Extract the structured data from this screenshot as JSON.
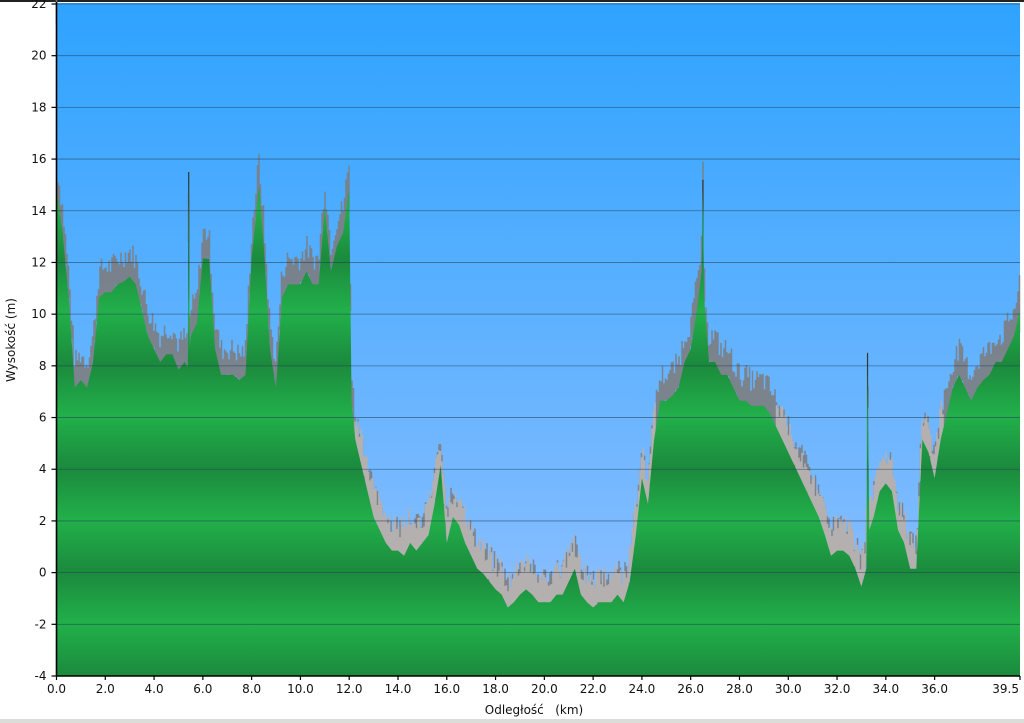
{
  "chart_data": {
    "type": "area",
    "title": "",
    "xlabel": "Odległość   (km)",
    "ylabel": "Wysokość (m)",
    "xlim": [
      0,
      39.5
    ],
    "ylim": [
      -4,
      22
    ],
    "x_ticks": [
      "0.0",
      "2.0",
      "4.0",
      "6.0",
      "8.0",
      "10.0",
      "12.0",
      "14.0",
      "16.0",
      "18.0",
      "20.0",
      "22.0",
      "24.0",
      "26.0",
      "28.0",
      "30.0",
      "32.0",
      "34.0",
      "36.0",
      "39.5"
    ],
    "y_ticks": [
      "-4",
      "-2",
      "0",
      "2",
      "4",
      "6",
      "8",
      "10",
      "12",
      "14",
      "16",
      "18",
      "20",
      "22"
    ],
    "grid": "horizontal",
    "colors": {
      "sky_top": "#2ea3ff",
      "sky_bottom": "#93c1ff",
      "terrain_dark": "#1b8a3d",
      "terrain_light": "#22b04a",
      "noise_high": "#7d7d80",
      "noise_low": "#b4b0b0"
    },
    "series": [
      {
        "points": [
          [
            0.0,
            22
          ],
          [
            0.03,
            15
          ],
          [
            0.25,
            13.5
          ],
          [
            0.5,
            11
          ],
          [
            0.75,
            7.5
          ],
          [
            1.0,
            7.8
          ],
          [
            1.25,
            7.5
          ],
          [
            1.5,
            8.5
          ],
          [
            1.75,
            11
          ],
          [
            2.0,
            11.2
          ],
          [
            2.25,
            11.2
          ],
          [
            2.5,
            11.5
          ],
          [
            2.75,
            11.6
          ],
          [
            3.0,
            11.8
          ],
          [
            3.25,
            11.5
          ],
          [
            3.5,
            10.5
          ],
          [
            3.75,
            9.5
          ],
          [
            4.0,
            9
          ],
          [
            4.25,
            8.5
          ],
          [
            4.5,
            8.8
          ],
          [
            4.75,
            8.8
          ],
          [
            5.0,
            8.2
          ],
          [
            5.25,
            8.5
          ],
          [
            5.38,
            8.3
          ],
          [
            5.42,
            15.5
          ],
          [
            5.46,
            9
          ],
          [
            5.5,
            9.5
          ],
          [
            5.75,
            10
          ],
          [
            6.0,
            12.5
          ],
          [
            6.25,
            12.5
          ],
          [
            6.5,
            9
          ],
          [
            6.75,
            8
          ],
          [
            7.0,
            8
          ],
          [
            7.25,
            8
          ],
          [
            7.5,
            7.8
          ],
          [
            7.75,
            8
          ],
          [
            8.0,
            12.5
          ],
          [
            8.3,
            15.3
          ],
          [
            8.5,
            13
          ],
          [
            8.75,
            9
          ],
          [
            9.0,
            7.5
          ],
          [
            9.25,
            11
          ],
          [
            9.5,
            11.5
          ],
          [
            9.75,
            11.5
          ],
          [
            10.0,
            11.5
          ],
          [
            10.25,
            12
          ],
          [
            10.5,
            11.5
          ],
          [
            10.75,
            11.5
          ],
          [
            11.0,
            14.5
          ],
          [
            11.25,
            12
          ],
          [
            11.5,
            13
          ],
          [
            11.75,
            13.5
          ],
          [
            12.0,
            15.2
          ],
          [
            12.1,
            7
          ],
          [
            12.25,
            5.5
          ],
          [
            12.5,
            4.5
          ],
          [
            12.75,
            3.5
          ],
          [
            13.0,
            2.5
          ],
          [
            13.25,
            2
          ],
          [
            13.5,
            1.5
          ],
          [
            13.75,
            1.2
          ],
          [
            14.0,
            1.2
          ],
          [
            14.25,
            1
          ],
          [
            14.5,
            1.5
          ],
          [
            14.75,
            1.2
          ],
          [
            15.0,
            1.5
          ],
          [
            15.25,
            1.8
          ],
          [
            15.5,
            3
          ],
          [
            15.75,
            4.5
          ],
          [
            16.0,
            1.5
          ],
          [
            16.25,
            2.5
          ],
          [
            16.5,
            2.2
          ],
          [
            16.75,
            1.5
          ],
          [
            17.0,
            1
          ],
          [
            17.25,
            0.5
          ],
          [
            17.5,
            0.3
          ],
          [
            17.75,
            0
          ],
          [
            18.0,
            -0.3
          ],
          [
            18.25,
            -0.5
          ],
          [
            18.5,
            -1
          ],
          [
            18.75,
            -0.8
          ],
          [
            19.0,
            -0.5
          ],
          [
            19.25,
            -0.3
          ],
          [
            19.5,
            -0.5
          ],
          [
            19.75,
            -0.8
          ],
          [
            20.0,
            -0.8
          ],
          [
            20.25,
            -0.8
          ],
          [
            20.5,
            -0.5
          ],
          [
            20.75,
            -0.5
          ],
          [
            21.0,
            0
          ],
          [
            21.25,
            0.5
          ],
          [
            21.5,
            -0.5
          ],
          [
            21.75,
            -0.8
          ],
          [
            22.0,
            -1
          ],
          [
            22.25,
            -0.8
          ],
          [
            22.5,
            -0.8
          ],
          [
            22.75,
            -0.8
          ],
          [
            23.0,
            -0.5
          ],
          [
            23.25,
            -0.8
          ],
          [
            23.5,
            0
          ],
          [
            23.75,
            1.8
          ],
          [
            24.0,
            4
          ],
          [
            24.25,
            3
          ],
          [
            24.5,
            5.5
          ],
          [
            24.75,
            7
          ],
          [
            25.0,
            7
          ],
          [
            25.25,
            7.2
          ],
          [
            25.5,
            7.5
          ],
          [
            25.75,
            8.5
          ],
          [
            26.0,
            9
          ],
          [
            26.25,
            10.5
          ],
          [
            26.45,
            12
          ],
          [
            26.5,
            15.2
          ],
          [
            26.55,
            11
          ],
          [
            26.75,
            8.5
          ],
          [
            27.0,
            8.5
          ],
          [
            27.25,
            8
          ],
          [
            27.5,
            8
          ],
          [
            27.75,
            7.5
          ],
          [
            28.0,
            7
          ],
          [
            28.25,
            7
          ],
          [
            28.5,
            6.8
          ],
          [
            28.75,
            6.8
          ],
          [
            29.0,
            6.8
          ],
          [
            29.25,
            6.5
          ],
          [
            29.5,
            6
          ],
          [
            29.75,
            5.5
          ],
          [
            30.0,
            5
          ],
          [
            30.25,
            4.5
          ],
          [
            30.5,
            4
          ],
          [
            30.75,
            3.5
          ],
          [
            31.0,
            3
          ],
          [
            31.25,
            2.5
          ],
          [
            31.5,
            1.8
          ],
          [
            31.75,
            1
          ],
          [
            32.0,
            1.2
          ],
          [
            32.25,
            1.2
          ],
          [
            32.5,
            1
          ],
          [
            32.75,
            0.5
          ],
          [
            33.0,
            -0.2
          ],
          [
            33.2,
            0.5
          ],
          [
            33.25,
            8.5
          ],
          [
            33.32,
            2
          ],
          [
            33.5,
            2.5
          ],
          [
            33.75,
            3.5
          ],
          [
            34.0,
            3.8
          ],
          [
            34.25,
            3.5
          ],
          [
            34.5,
            2
          ],
          [
            34.75,
            1.5
          ],
          [
            35.0,
            0.5
          ],
          [
            35.25,
            0.5
          ],
          [
            35.5,
            5.5
          ],
          [
            35.75,
            5
          ],
          [
            36.0,
            4
          ],
          [
            36.25,
            5.5
          ],
          [
            36.5,
            6.5
          ],
          [
            36.75,
            7.5
          ],
          [
            37.0,
            8
          ],
          [
            37.25,
            7.5
          ],
          [
            37.5,
            7
          ],
          [
            37.75,
            7.5
          ],
          [
            38.0,
            7.8
          ],
          [
            38.25,
            8
          ],
          [
            38.5,
            8.5
          ],
          [
            38.75,
            8.5
          ],
          [
            39.0,
            9
          ],
          [
            39.25,
            9.5
          ],
          [
            39.5,
            10.5
          ]
        ]
      }
    ]
  }
}
